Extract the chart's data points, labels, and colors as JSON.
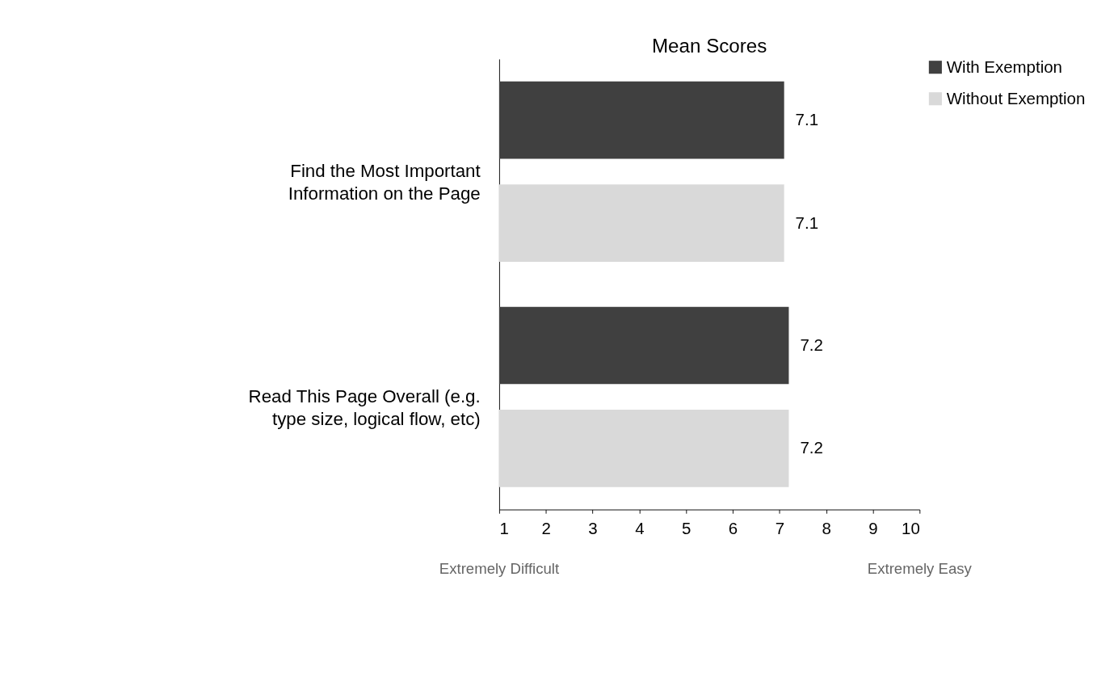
{
  "chart_data": {
    "type": "bar",
    "orientation": "horizontal",
    "title": "Mean Scores",
    "categories": [
      "Find the Most Important Information on the Page",
      "Read This Page Overall (e.g. type size, logical flow, etc)"
    ],
    "series": [
      {
        "name": "With Exemption",
        "color": "#404040",
        "values": [
          7.1,
          7.2
        ]
      },
      {
        "name": "Without Exemption",
        "color": "#d9d9d9",
        "values": [
          7.1,
          7.2
        ]
      }
    ],
    "xlim": [
      1,
      10
    ],
    "xticks": [
      1,
      2,
      3,
      4,
      5,
      6,
      7,
      8,
      9,
      10
    ],
    "data_labels": true,
    "grid": false,
    "legend": "right",
    "annotations": [
      "Extremely Difficult",
      "Extremely Easy"
    ]
  }
}
